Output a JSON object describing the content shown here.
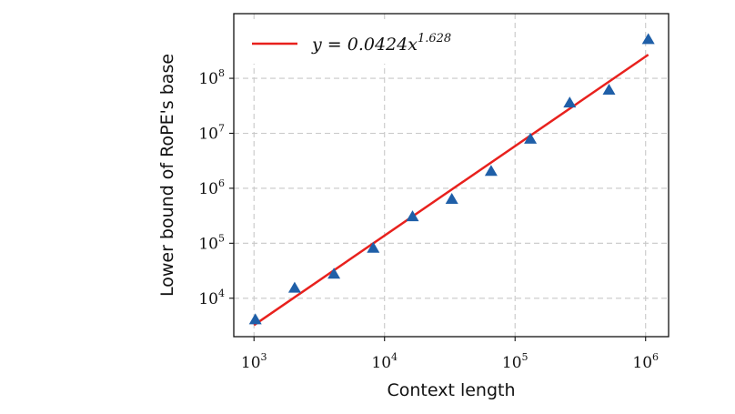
{
  "chart_data": {
    "type": "scatter",
    "xlabel": "Context length",
    "ylabel": "Lower bound of RoPE's base",
    "x_scale": "log",
    "y_scale": "log",
    "xlim": [
      700,
      1500000
    ],
    "ylim": [
      2000,
      1500000000
    ],
    "grid": true,
    "grid_style": "dashed",
    "legend_position": "top-left",
    "x_ticks": [
      {
        "base": "10",
        "exp": "3",
        "value": 1000
      },
      {
        "base": "10",
        "exp": "4",
        "value": 10000
      },
      {
        "base": "10",
        "exp": "5",
        "value": 100000
      },
      {
        "base": "10",
        "exp": "6",
        "value": 1000000
      }
    ],
    "y_ticks": [
      {
        "base": "10",
        "exp": "4",
        "value": 10000
      },
      {
        "base": "10",
        "exp": "5",
        "value": 100000
      },
      {
        "base": "10",
        "exp": "6",
        "value": 1000000
      },
      {
        "base": "10",
        "exp": "7",
        "value": 10000000
      },
      {
        "base": "10",
        "exp": "8",
        "value": 100000000
      }
    ],
    "series": [
      {
        "kind": "points",
        "marker": "triangle",
        "color": "#1f5fa8",
        "x": [
          1024,
          2048,
          4096,
          8192,
          16384,
          32768,
          65536,
          131072,
          262144,
          524288,
          1048576
        ],
        "y": [
          4000,
          15000,
          27000,
          80000,
          300000,
          620000,
          2000000,
          7700000,
          35000000,
          60000000,
          500000000
        ]
      },
      {
        "kind": "fit",
        "color": "#e8211d",
        "coefficient": 0.0424,
        "exponent": 1.628,
        "x_range": [
          1000,
          1048576
        ]
      }
    ],
    "legend": {
      "lhs": "y = 0.0424x",
      "exp": "1.628"
    }
  }
}
